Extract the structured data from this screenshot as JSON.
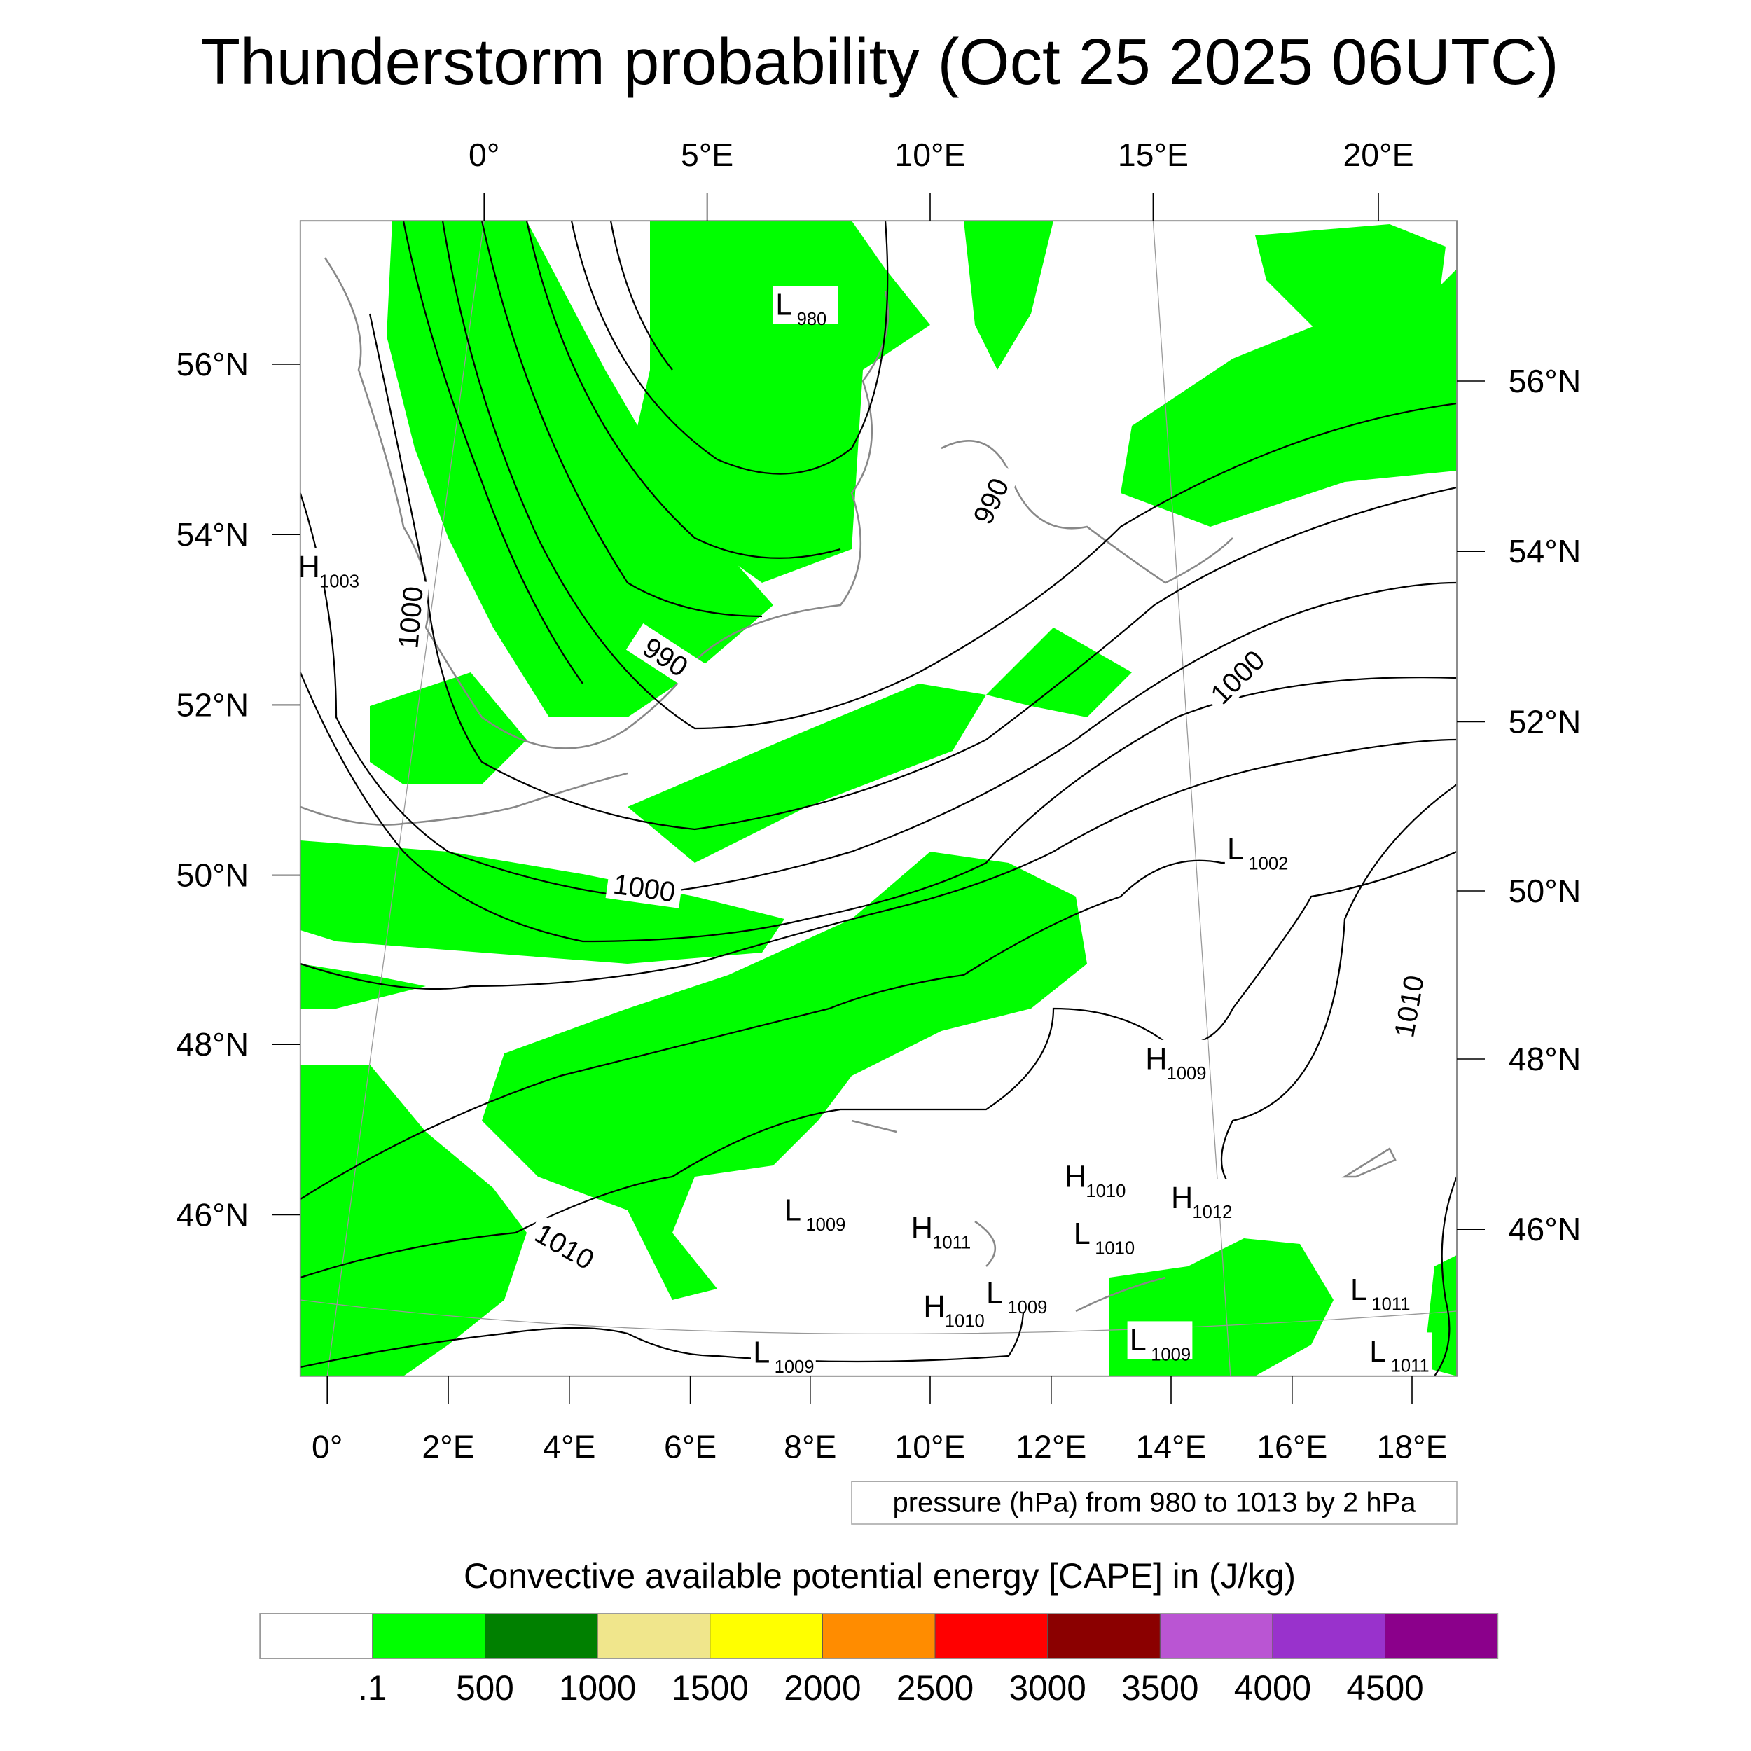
{
  "chart_data": {
    "type": "heatmap",
    "title": "Thunderstorm probability (Oct 25 2025 06UTC)",
    "top_lon_labels": [
      "0°",
      "5°E",
      "10°E",
      "15°E",
      "20°E"
    ],
    "left_lat_labels": [
      "56°N",
      "54°N",
      "52°N",
      "50°N",
      "48°N",
      "46°N"
    ],
    "right_lat_labels": [
      "56°N",
      "54°N",
      "52°N",
      "50°N",
      "48°N",
      "46°N"
    ],
    "bottom_lon_labels": [
      "0°",
      "2°E",
      "4°E",
      "6°E",
      "8°E",
      "10°E",
      "12°E",
      "14°E",
      "16°E",
      "18°E"
    ],
    "contour_info": "pressure (hPa) from 980 to 1013 by 2 hPa",
    "contour_labels": [
      "1000",
      "990",
      "990",
      "1000",
      "1000",
      "1010",
      "1010"
    ],
    "pressure_centers": [
      {
        "type": "L",
        "value": "980"
      },
      {
        "type": "H",
        "value": "1003"
      },
      {
        "type": "L",
        "value": "1002"
      },
      {
        "type": "H",
        "value": "1009"
      },
      {
        "type": "H",
        "value": "1010"
      },
      {
        "type": "H",
        "value": "1012"
      },
      {
        "type": "L",
        "value": "1009"
      },
      {
        "type": "H",
        "value": "1011"
      },
      {
        "type": "L",
        "value": "1010"
      },
      {
        "type": "L",
        "value": "1009"
      },
      {
        "type": "H",
        "value": "1010"
      },
      {
        "type": "L",
        "value": "1009"
      },
      {
        "type": "L",
        "value": "1011"
      },
      {
        "type": "L",
        "value": "1011"
      },
      {
        "type": "L",
        "value": "1009"
      }
    ],
    "colorbar": {
      "title": "Convective available potential energy [CAPE] in (J/kg)",
      "levels": [
        ".1",
        "500",
        "1000",
        "1500",
        "2000",
        "2500",
        "3000",
        "3500",
        "4000",
        "4500"
      ],
      "colors": [
        "#ffffff",
        "#00ff00",
        "#008000",
        "#f0e68c",
        "#ffff00",
        "#ff8c00",
        "#ff0000",
        "#8b0000",
        "#ba55d3",
        "#9932cc",
        "#8b008b"
      ]
    }
  }
}
